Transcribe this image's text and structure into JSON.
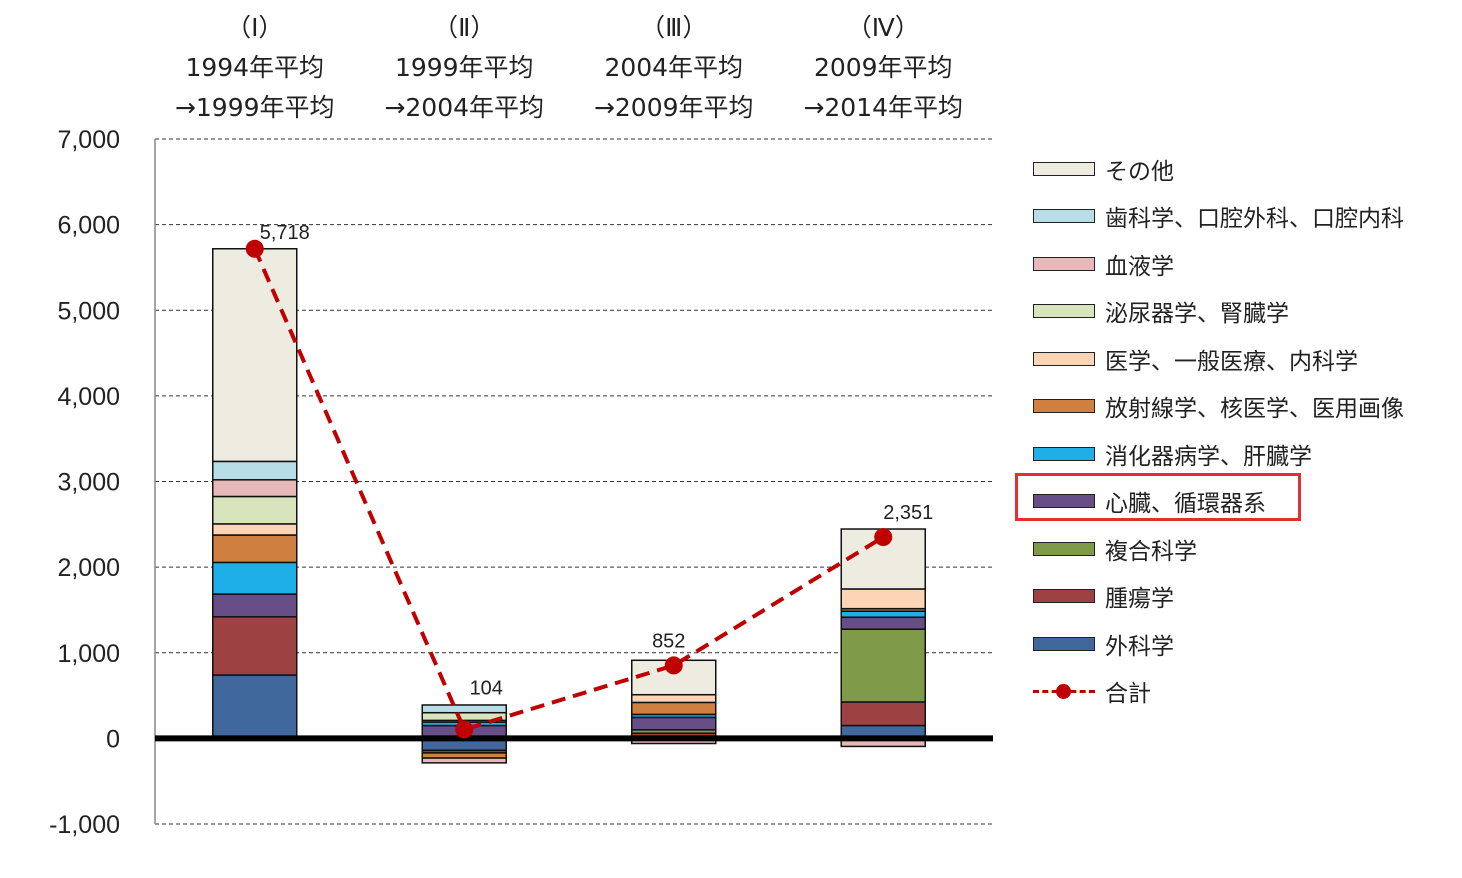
{
  "chart_data": {
    "type": "stacked-bar+line",
    "periods": [
      {
        "num": "（Ⅰ）",
        "from": "1994年平均",
        "to": "→1999年平均"
      },
      {
        "num": "（Ⅱ）",
        "from": "1999年平均",
        "to": "→2004年平均"
      },
      {
        "num": "（Ⅲ）",
        "from": "2004年平均",
        "to": "→2009年平均"
      },
      {
        "num": "（Ⅳ）",
        "from": "2009年平均",
        "to": "→2014年平均"
      }
    ],
    "ylim": [
      -1000,
      7000
    ],
    "yticks": [
      "7,000",
      "6,000",
      "5,000",
      "4,000",
      "3,000",
      "2,000",
      "1,000",
      "0",
      "-1,000"
    ],
    "grid": true,
    "legend_position": "right",
    "series": [
      {
        "name": "外科学",
        "color": "#41689c",
        "values": [
          740,
          -140,
          20,
          150
        ]
      },
      {
        "name": "腫瘍学",
        "color": "#9e4142",
        "values": [
          680,
          -30,
          40,
          275
        ]
      },
      {
        "name": "複合科学",
        "color": "#7f9a48",
        "values": [
          0,
          0,
          40,
          850
        ]
      },
      {
        "name": "心臓、循環器系",
        "color": "#674e86",
        "values": [
          265,
          150,
          145,
          140
        ]
      },
      {
        "name": "消化器病学、肝臓学",
        "color": "#1eaee8",
        "values": [
          370,
          40,
          35,
          70
        ]
      },
      {
        "name": "放射線学、核医学、医用画像",
        "color": "#cf7f3f",
        "values": [
          320,
          -60,
          140,
          30
        ]
      },
      {
        "name": "医学、一般医療、内科学",
        "color": "#fbd5b5",
        "values": [
          130,
          20,
          90,
          230
        ]
      },
      {
        "name": "泌尿器学、腎臓学",
        "color": "#d8e4bc",
        "values": [
          320,
          90,
          0,
          0
        ]
      },
      {
        "name": "血液学",
        "color": "#e6b9b8",
        "values": [
          195,
          -56,
          -60,
          -94
        ]
      },
      {
        "name": "歯科学、口腔外科、口腔内科",
        "color": "#b7dee8",
        "values": [
          215,
          90,
          0,
          0
        ]
      },
      {
        "name": "その他",
        "color": "#eeece1",
        "values": [
          2483,
          0,
          402,
          700
        ]
      }
    ],
    "total": {
      "name": "合計",
      "color": "#c00000",
      "values": [
        5718,
        104,
        852,
        2351
      ],
      "labels": [
        "5,718",
        "104",
        "852",
        "2,351"
      ]
    },
    "highlighted_legend_item": "心臓、循環器系"
  }
}
